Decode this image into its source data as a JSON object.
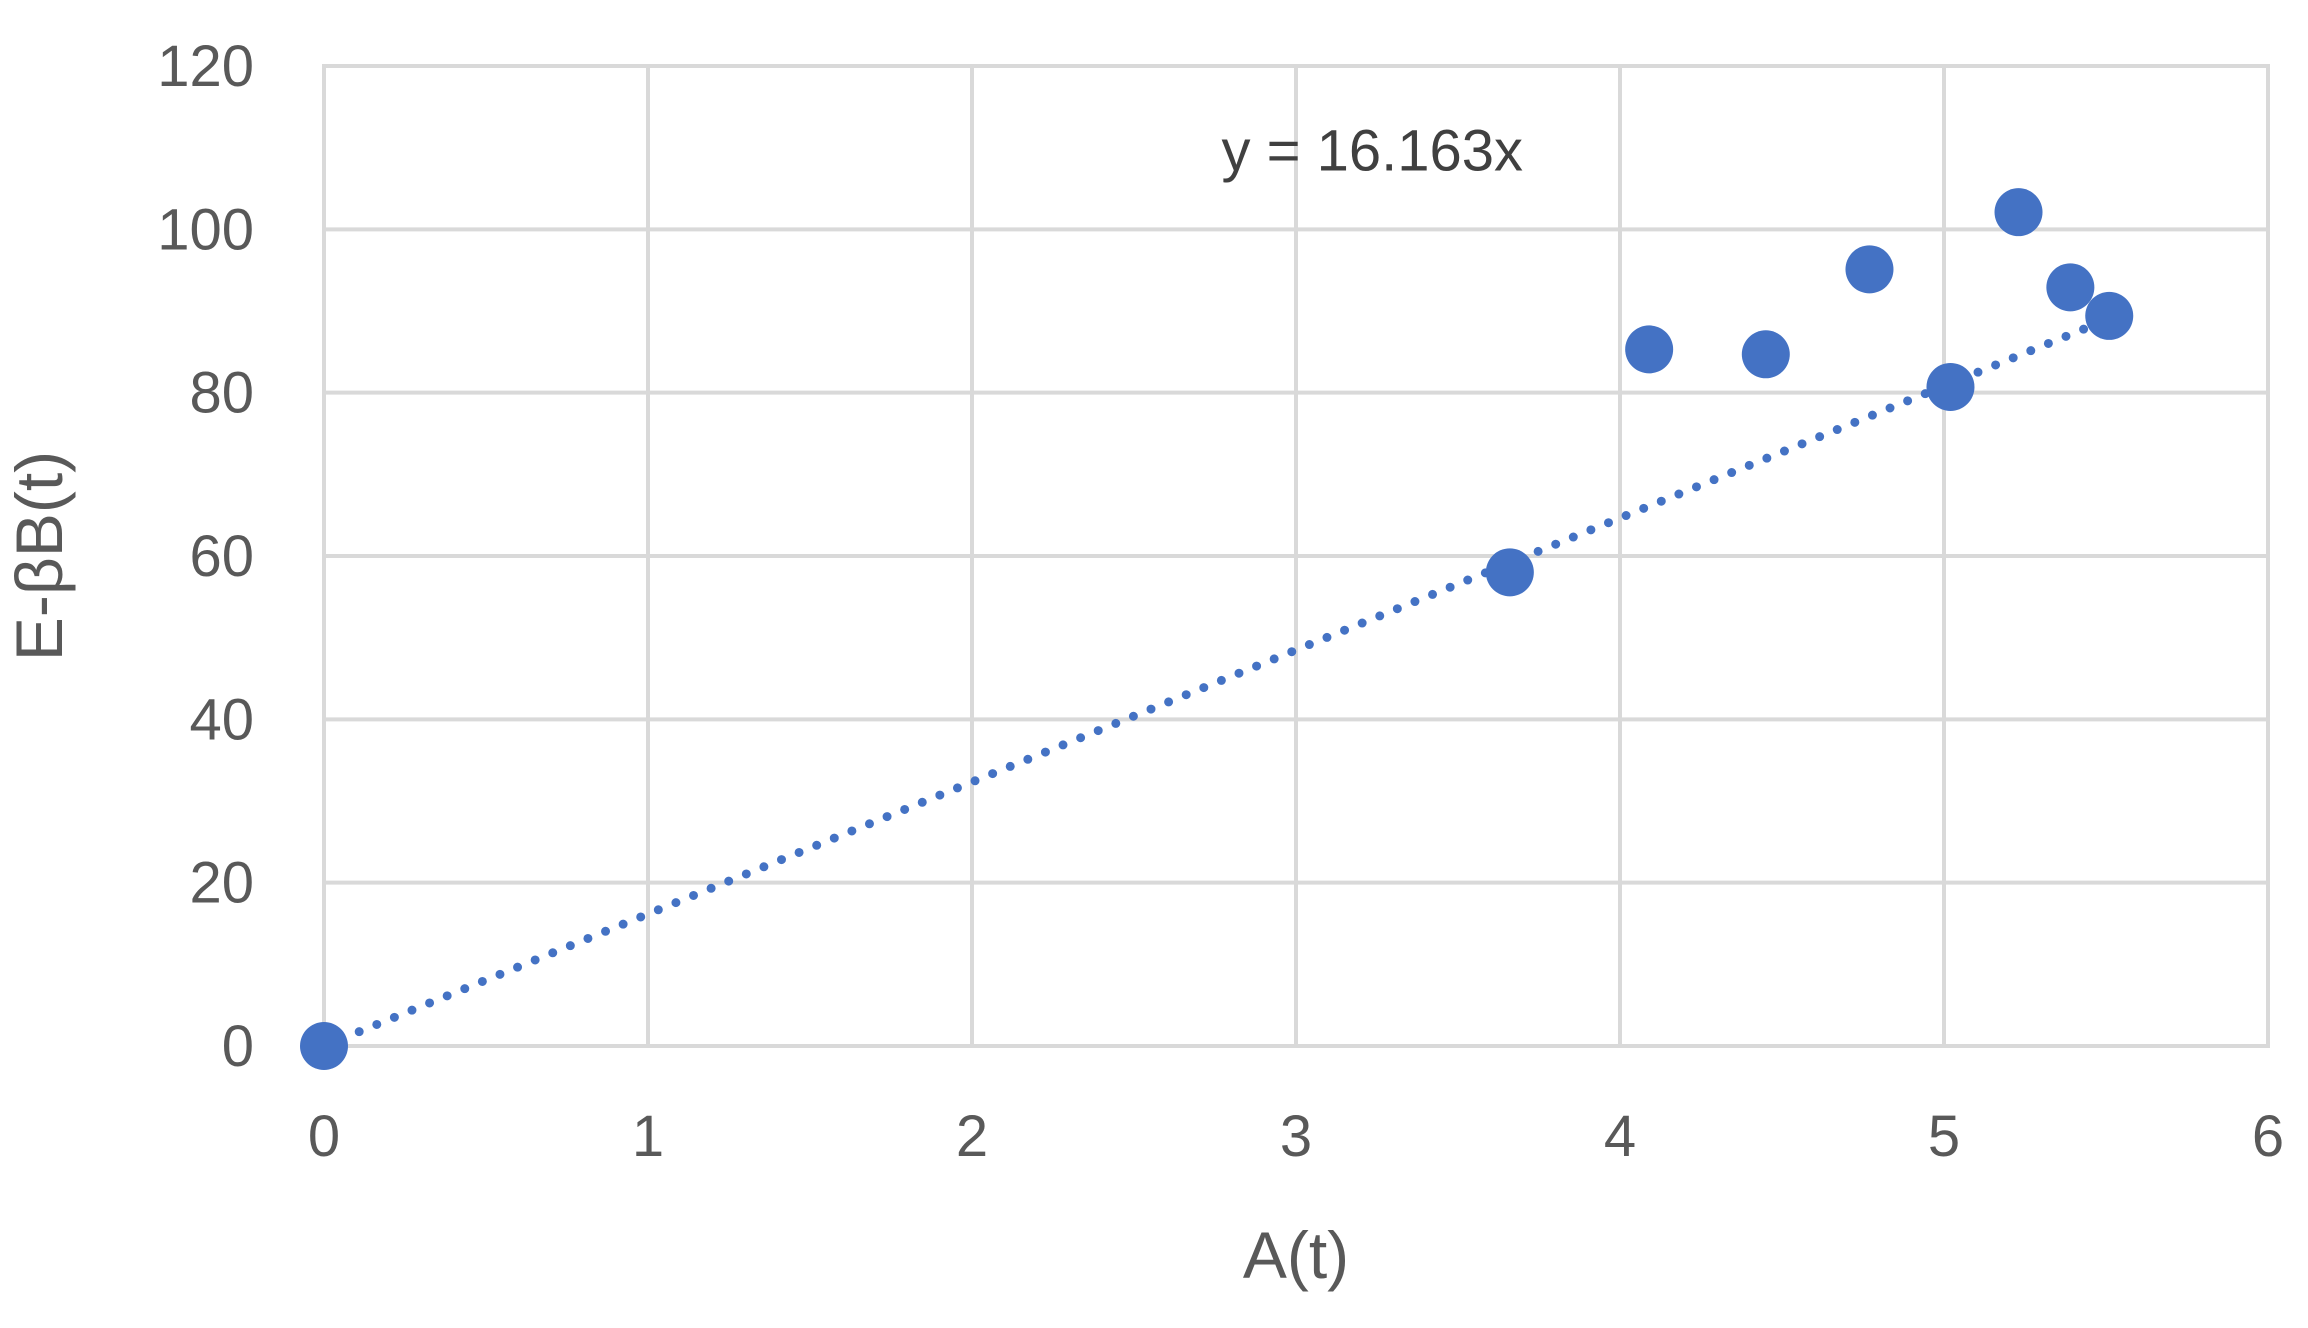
{
  "chart_data": {
    "type": "scatter",
    "title": "",
    "xlabel": "A(t)",
    "ylabel": "E-βB(t)",
    "xlim": [
      0,
      6
    ],
    "ylim": [
      0,
      120
    ],
    "x_ticks": [
      0,
      1,
      2,
      3,
      4,
      5,
      6
    ],
    "y_ticks": [
      0,
      20,
      40,
      60,
      80,
      100,
      120
    ],
    "x_tick_labels": [
      "0",
      "1",
      "2",
      "3",
      "4",
      "5",
      "6"
    ],
    "y_tick_labels": [
      "0",
      "20",
      "40",
      "60",
      "80",
      "100",
      "120"
    ],
    "grid": true,
    "legend": "none",
    "series": [
      {
        "points": [
          {
            "x": 0.0,
            "y": 0.0
          },
          {
            "x": 3.66,
            "y": 58.0
          },
          {
            "x": 4.09,
            "y": 85.3
          },
          {
            "x": 4.45,
            "y": 84.7
          },
          {
            "x": 4.77,
            "y": 95.1
          },
          {
            "x": 5.02,
            "y": 80.7
          },
          {
            "x": 5.23,
            "y": 102.1
          },
          {
            "x": 5.39,
            "y": 92.9
          },
          {
            "x": 5.51,
            "y": 89.4
          }
        ],
        "color": "#4472c4"
      }
    ],
    "trendline": {
      "type": "linear-through-origin",
      "slope": 16.163,
      "x_range": [
        0,
        5.51
      ],
      "color": "#4472c4",
      "style": "dotted",
      "equation_label": "y = 16.163x"
    }
  }
}
